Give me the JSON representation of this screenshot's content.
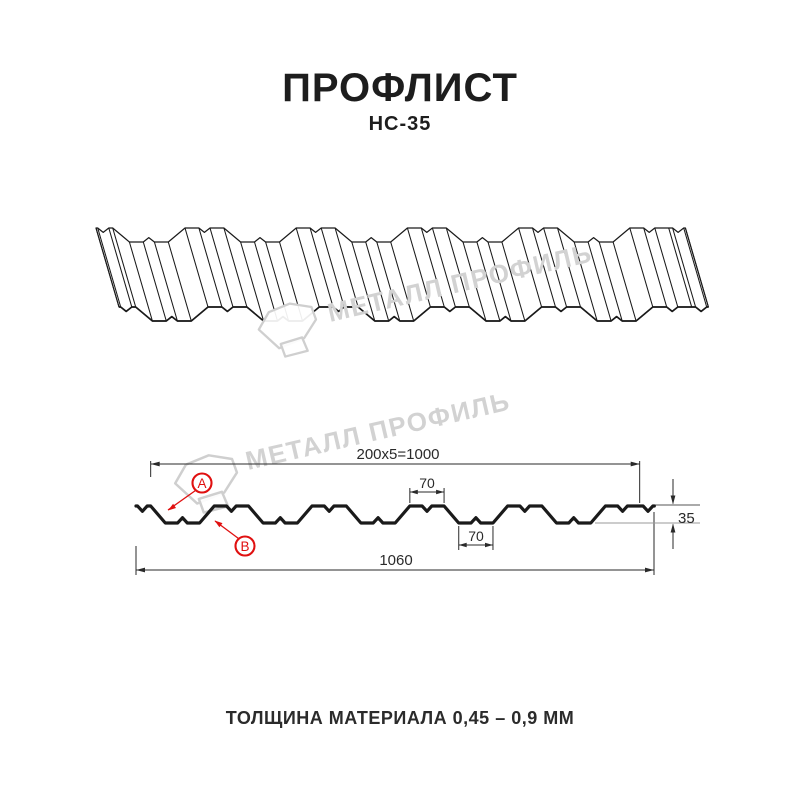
{
  "header": {
    "title": "ПРОФЛИСТ",
    "subtitle": "НС-35"
  },
  "watermark": {
    "brand": "МЕТАЛЛ ПРОФИЛЬ"
  },
  "section": {
    "dim_cover": "200x5=1000",
    "dim_crest_width": "70",
    "dim_trough_width": "70",
    "dim_height": "35",
    "dim_total_width": "1060",
    "marker_a": "A",
    "marker_b": "B"
  },
  "profile_spec": {
    "name": "НС-35",
    "height_mm": 35,
    "module_mm": 200,
    "modules_count": 5,
    "cover_width_mm": 1000,
    "overall_width_mm": 1060,
    "crest_top_width_mm": 70,
    "trough_bottom_width_mm": 70,
    "thickness_range_mm": "0,45 – 0,9"
  },
  "footer": {
    "thickness": "ТОЛЩИНА МАТЕРИАЛА 0,45 – 0,9 ММ"
  },
  "colors": {
    "background": "#ffffff",
    "line": "#1a1a1a",
    "dimension": "#2a2a2a",
    "accent_red": "#e01010",
    "watermark": "#d2d2d2"
  }
}
